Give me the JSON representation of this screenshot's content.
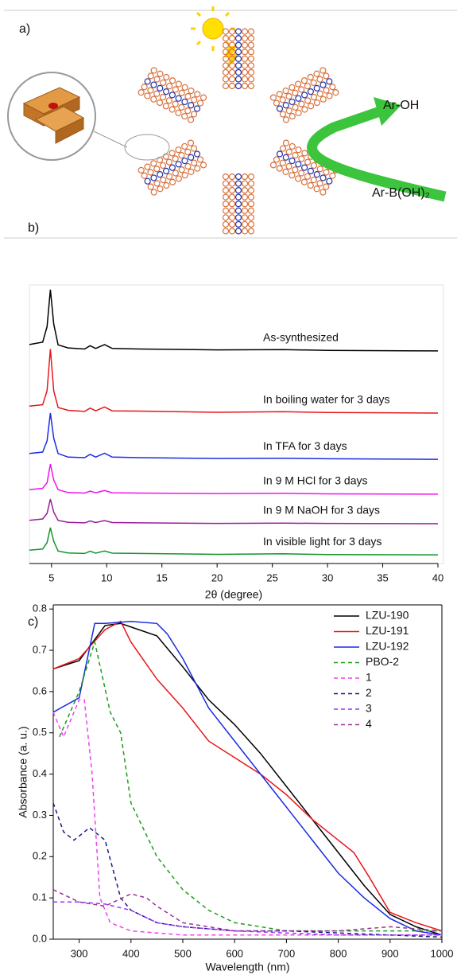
{
  "figure": {
    "panel_a_label": "a)",
    "panel_b_label": "b)",
    "panel_c_label": "c)",
    "product": "Ar-OH",
    "reactant": "Ar-B(OH)₂"
  },
  "chart_data": [
    {
      "type": "line",
      "xlabel": "2θ (degree)",
      "xlim": [
        3,
        40
      ],
      "xticks": [
        5,
        10,
        15,
        20,
        25,
        30,
        35,
        40
      ],
      "ylim": [
        0,
        100
      ],
      "inline_labels": true,
      "x": [
        3,
        4.2,
        4.6,
        4.9,
        5.2,
        5.6,
        6.5,
        8,
        8.5,
        9,
        9.8,
        10.5,
        13,
        20,
        26,
        30,
        40
      ],
      "series": [
        {
          "name": "As-synthesized",
          "color": "#000000",
          "values": [
            78.6,
            79.5,
            85,
            98.3,
            86,
            78.5,
            77.4,
            77,
            78.2,
            77.2,
            78.6,
            77.2,
            77,
            76.7,
            76.8,
            76.5,
            76.3
          ]
        },
        {
          "name": "In boiling water for 3 days",
          "color": "#e8161b",
          "values": [
            56.5,
            57,
            62,
            77,
            62,
            56,
            55,
            54.6,
            55.8,
            54.8,
            56.2,
            54.8,
            54.7,
            54.3,
            54.5,
            54.2,
            54
          ]
        },
        {
          "name": "In TFA for 3 days",
          "color": "#1a2ce0",
          "values": [
            39.5,
            40,
            44,
            54,
            45,
            39.5,
            38.2,
            38,
            39.2,
            38.2,
            39.6,
            38.2,
            38,
            37.7,
            37.8,
            37.6,
            37.4
          ]
        },
        {
          "name": "In 9 M HCl for 3 days",
          "color": "#f012f0",
          "values": [
            26.5,
            27,
            29,
            35.7,
            30,
            26.5,
            25.5,
            25.3,
            26,
            25.4,
            26.2,
            25.4,
            25.3,
            25.1,
            25.2,
            25,
            24.9
          ]
        },
        {
          "name": "In 9 M NaOH for 3 days",
          "color": "#9b1c9b",
          "values": [
            15.5,
            16,
            18,
            23.1,
            18.5,
            15.5,
            14.8,
            14.6,
            15.3,
            14.7,
            15.4,
            14.7,
            14.6,
            14.4,
            14.5,
            14.4,
            14.3
          ]
        },
        {
          "name": "In visible light for 3 days",
          "color": "#13952a",
          "values": [
            4.8,
            5.2,
            7.5,
            12.9,
            8,
            4.5,
            3.8,
            3.6,
            4.4,
            3.7,
            4.5,
            3.7,
            3.6,
            3.3,
            3.5,
            3.2,
            3.1
          ]
        }
      ]
    },
    {
      "type": "line",
      "xlabel": "Wavelength (nm)",
      "ylabel": "Absorbance (a. u.)",
      "xlim": [
        250,
        1000
      ],
      "xticks": [
        300,
        400,
        500,
        600,
        700,
        800,
        900,
        1000
      ],
      "ylim": [
        0,
        0.81
      ],
      "yticks": [
        {
          "value": 0,
          "label": "0.0"
        },
        0.1,
        0.2,
        0.3,
        0.4,
        0.5,
        0.6,
        0.7,
        0.8
      ],
      "legend": "upper right",
      "series": [
        {
          "name": "LZU-190",
          "color": "#000000",
          "dash": false,
          "x": [
            250,
            300,
            350,
            380,
            450,
            500,
            550,
            600,
            650,
            700,
            750,
            800,
            850,
            900,
            950,
            1000
          ],
          "values": [
            0.655,
            0.675,
            0.76,
            0.765,
            0.735,
            0.66,
            0.58,
            0.52,
            0.45,
            0.37,
            0.29,
            0.21,
            0.13,
            0.06,
            0.03,
            0.01
          ]
        },
        {
          "name": "LZU-191",
          "color": "#e8161b",
          "dash": false,
          "x": [
            250,
            300,
            350,
            380,
            400,
            450,
            500,
            550,
            600,
            650,
            700,
            750,
            800,
            830,
            860,
            900,
            950,
            1000
          ],
          "values": [
            0.655,
            0.68,
            0.75,
            0.77,
            0.72,
            0.63,
            0.56,
            0.48,
            0.44,
            0.4,
            0.35,
            0.29,
            0.24,
            0.21,
            0.15,
            0.065,
            0.04,
            0.02
          ]
        },
        {
          "name": "LZU-192",
          "color": "#1a2ce0",
          "dash": false,
          "x": [
            250,
            300,
            330,
            350,
            400,
            450,
            470,
            500,
            550,
            600,
            650,
            700,
            750,
            800,
            850,
            900,
            950,
            1000
          ],
          "values": [
            0.55,
            0.585,
            0.765,
            0.765,
            0.77,
            0.765,
            0.74,
            0.68,
            0.56,
            0.48,
            0.4,
            0.32,
            0.24,
            0.16,
            0.1,
            0.05,
            0.02,
            0.01
          ]
        },
        {
          "name": "PBO-2",
          "color": "#1a9e1a",
          "dash": true,
          "x": [
            262,
            300,
            330,
            360,
            380,
            400,
            450,
            500,
            550,
            600,
            650,
            700,
            800,
            900,
            1000
          ],
          "values": [
            0.49,
            0.6,
            0.72,
            0.55,
            0.5,
            0.33,
            0.2,
            0.12,
            0.07,
            0.04,
            0.03,
            0.02,
            0.02,
            0.02,
            0.02
          ]
        },
        {
          "name": "1",
          "color": "#f040f0",
          "dash": true,
          "x": [
            250,
            270,
            300,
            310,
            325,
            340,
            360,
            400,
            500,
            600,
            700,
            800,
            900,
            1000
          ],
          "values": [
            0.55,
            0.49,
            0.58,
            0.58,
            0.4,
            0.1,
            0.04,
            0.02,
            0.01,
            0.01,
            0.01,
            0.01,
            0.01,
            0.01
          ]
        },
        {
          "name": "2",
          "color": "#1a1a80",
          "dash": true,
          "x": [
            250,
            270,
            290,
            320,
            350,
            380,
            400,
            450,
            500,
            600,
            700,
            800,
            900,
            1000
          ],
          "values": [
            0.33,
            0.26,
            0.24,
            0.27,
            0.24,
            0.1,
            0.07,
            0.04,
            0.03,
            0.02,
            0.02,
            0.015,
            0.01,
            0.005
          ]
        },
        {
          "name": "3",
          "color": "#9933ff",
          "dash": true,
          "x": [
            250,
            300,
            350,
            400,
            450,
            500,
            600,
            700,
            800,
            900,
            1000
          ],
          "values": [
            0.09,
            0.09,
            0.085,
            0.07,
            0.04,
            0.03,
            0.02,
            0.015,
            0.01,
            0.01,
            0.01
          ]
        },
        {
          "name": "4",
          "color": "#993399",
          "dash": true,
          "x": [
            250,
            300,
            350,
            400,
            430,
            450,
            500,
            600,
            700,
            800,
            900,
            1000
          ],
          "values": [
            0.12,
            0.09,
            0.08,
            0.11,
            0.1,
            0.08,
            0.04,
            0.02,
            0.02,
            0.02,
            0.03,
            0.02
          ]
        }
      ]
    }
  ]
}
